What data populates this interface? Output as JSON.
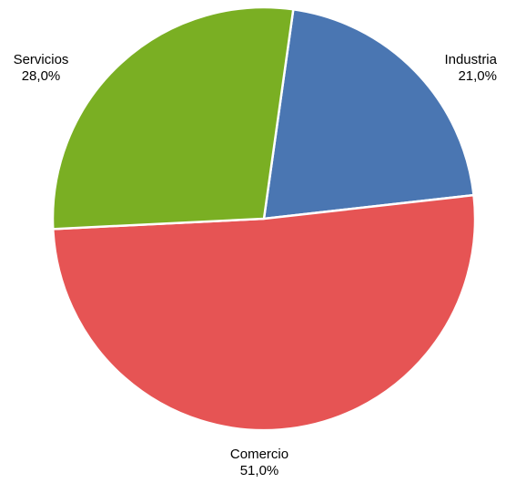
{
  "chart_data": {
    "type": "pie",
    "slices": [
      {
        "name": "Industria",
        "value": 21.0,
        "label": "21,0%",
        "color": "#4a76b2"
      },
      {
        "name": "Comercio",
        "value": 51.0,
        "label": "51,0%",
        "color": "#e65454"
      },
      {
        "name": "Servicios",
        "value": 28.0,
        "label": "28,0%",
        "color": "#7aaf23"
      }
    ],
    "start_angle_deg": 8,
    "direction": "clockwise",
    "separator_color": "#ffffff"
  }
}
